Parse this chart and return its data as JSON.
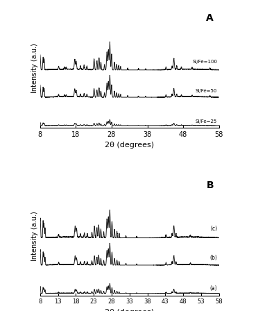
{
  "panel_A": {
    "label": "A",
    "x_min": 8,
    "x_max": 58,
    "x_ticks": [
      8,
      18,
      28,
      38,
      48,
      58
    ],
    "xlabel": "2θ (degrees)",
    "ylabel": "Intensity (a.u.)",
    "series_labels": [
      "Si/Fe=100",
      "Si/Fe=50",
      "Si/Fe=25"
    ],
    "offsets": [
      0.55,
      0.28,
      0.0
    ],
    "scales": [
      0.28,
      0.22,
      0.06
    ]
  },
  "panel_B": {
    "label": "B",
    "x_min": 8,
    "x_max": 58,
    "x_ticks": [
      8,
      13,
      18,
      23,
      28,
      33,
      38,
      43,
      48,
      53,
      58
    ],
    "xlabel": "2θ (degrees)",
    "ylabel": "Intensity (a.u.)",
    "series_labels": [
      "(c)",
      "(b)",
      "(a)"
    ],
    "offsets": [
      0.55,
      0.28,
      0.0
    ],
    "scales": [
      0.28,
      0.22,
      0.1
    ]
  },
  "line_color": "#111111",
  "background_color": "#ffffff"
}
